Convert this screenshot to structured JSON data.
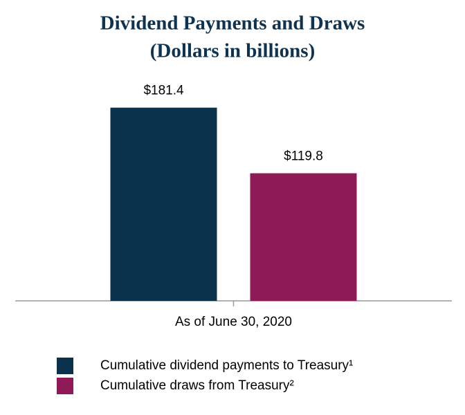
{
  "chart_data": {
    "type": "bar",
    "title": "Dividend Payments and Draws",
    "subtitle": "(Dollars in billions)",
    "categories": [
      "As of June 30, 2020"
    ],
    "series": [
      {
        "name": "Cumulative dividend payments to Treasury¹",
        "color": "#0b324d",
        "values": [
          181.4
        ],
        "value_labels": [
          "$181.4"
        ]
      },
      {
        "name": "Cumulative draws from Treasury²",
        "color": "#8e1b57",
        "values": [
          119.8
        ],
        "value_labels": [
          "$119.8"
        ]
      }
    ],
    "ylim": [
      0,
      200
    ]
  }
}
